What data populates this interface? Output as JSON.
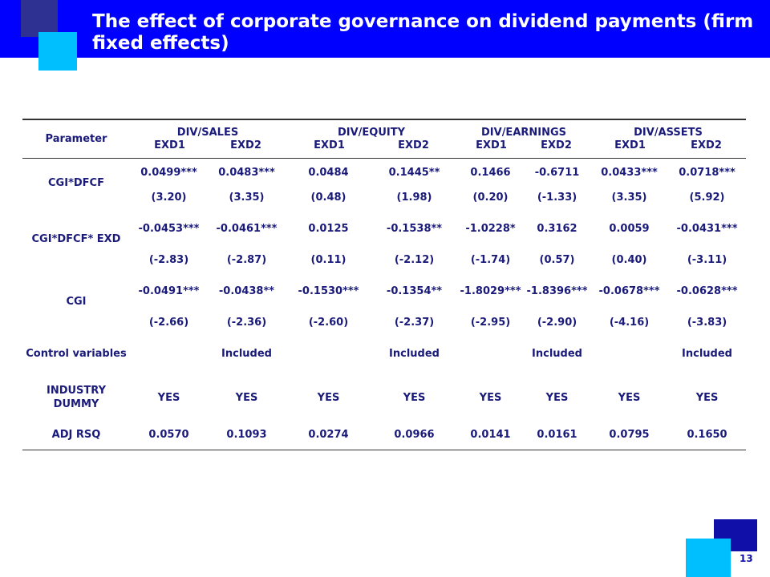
{
  "title": "The effect of corporate governance on dividend payments (firm fixed effects)",
  "page_number": "13",
  "table": {
    "param_header": "Parameter",
    "groups": [
      {
        "name": "DIV/SALES",
        "sub": [
          "EXD1",
          "EXD2"
        ]
      },
      {
        "name": "DIV/EQUITY",
        "sub": [
          "EXD1",
          "EXD2"
        ]
      },
      {
        "name": "DIV/EARNINGS",
        "sub": [
          "EXD1",
          "EXD2"
        ]
      },
      {
        "name": "DIV/ASSETS",
        "sub": [
          "EXD1",
          "EXD2"
        ]
      }
    ],
    "rows": [
      {
        "label": "CGI*DFCF",
        "coef": [
          "0.0499***",
          "0.0483***",
          "0.0484",
          "0.1445**",
          "0.1466",
          "-0.6711",
          "0.0433***",
          "0.0718***"
        ],
        "t": [
          "(3.20)",
          "(3.35)",
          "(0.48)",
          "(1.98)",
          "(0.20)",
          "(-1.33)",
          "(3.35)",
          "(5.92)"
        ]
      },
      {
        "label": "CGI*DFCF* EXD",
        "coef": [
          "-0.0453***",
          "-0.0461***",
          "0.0125",
          "-0.1538**",
          "-1.0228*",
          "0.3162",
          "0.0059",
          "-0.0431***"
        ],
        "t": [
          "(-2.83)",
          "(-2.87)",
          "(0.11)",
          "(-2.12)",
          "(-1.74)",
          "(0.57)",
          "(0.40)",
          "(-3.11)"
        ]
      },
      {
        "label": "CGI",
        "coef": [
          "-0.0491***",
          "-0.0438**",
          "-0.1530***",
          "-0.1354**",
          "-1.8029***",
          "-1.8396***",
          "-0.0678***",
          "-0.0628***"
        ],
        "t": [
          "(-2.66)",
          "(-2.36)",
          "(-2.60)",
          "(-2.37)",
          "(-2.95)",
          "(-2.90)",
          "(-4.16)",
          "(-3.83)"
        ]
      }
    ],
    "control": {
      "label": "Control variables",
      "values": [
        "",
        "Included",
        "",
        "Included",
        "",
        "Included",
        "",
        "Included"
      ]
    },
    "industry": {
      "label": "INDUSTRY DUMMY",
      "values": [
        "YES",
        "YES",
        "YES",
        "YES",
        "YES",
        "YES",
        "YES",
        "YES"
      ]
    },
    "adjrsq": {
      "label": "ADJ RSQ",
      "values": [
        "0.0570",
        "0.1093",
        "0.0274",
        "0.0966",
        "0.0141",
        "0.0161",
        "0.0795",
        "0.1650"
      ]
    }
  }
}
